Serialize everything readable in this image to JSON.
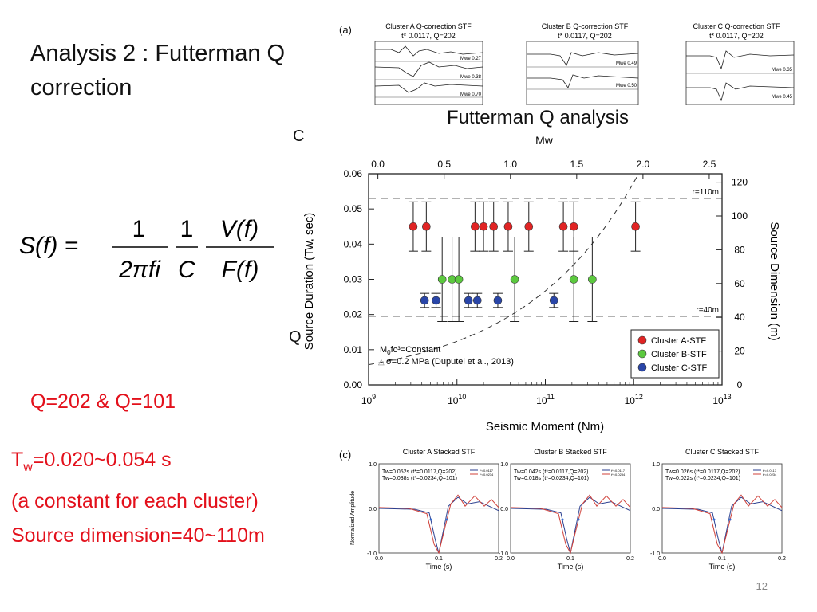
{
  "slide": {
    "title_line1": "Analysis 2 : Futterman Q",
    "title_line2": "correction",
    "formula": {
      "lhs": "S(f) =",
      "frac1_num": "1",
      "frac1_den": "2πfi",
      "frac2_num": "1",
      "frac2_den": "C",
      "frac3_num": "V(f)",
      "frac3_den": "F(f)"
    },
    "q_values": "Q=202 & Q=101",
    "tw_prefix": "T",
    "tw_sub": "w",
    "tw_value": "=0.020~0.054 s",
    "tw_note": "(a constant for each cluster)",
    "source_dimension": "Source dimension=40~110m",
    "page_number": "12",
    "stray_char_1": "C",
    "stray_char_2": "Q"
  },
  "figure_a": {
    "label": "(a)",
    "panels": [
      {
        "title1": "Cluster A Q-correction STF",
        "title2": "t* 0.0117, Q=202",
        "mwe": [
          "Mwe 0.27",
          "Mwe 0.38",
          "Mwe 0.70"
        ]
      },
      {
        "title1": "Cluster B Q-correction STF",
        "title2": "t* 0.0117, Q=202",
        "mwe": [
          "Mwe 0.49",
          "Mwe 0.50"
        ]
      },
      {
        "title1": "Cluster C Q-correction STF",
        "title2": "t* 0.0117, Q=202",
        "mwe": [
          "Mwe 0.35",
          "Mwe 0.45"
        ]
      }
    ]
  },
  "chart_data": [
    {
      "type": "scatter",
      "title": "Futterman Q analysis",
      "xlabel": "Seismic Moment (Nm)",
      "ylabel": "Source Duration (Tw, sec)",
      "y2label": "Source Dimension (m)",
      "x2label": "Mw",
      "x_scale": "log",
      "xlim": [
        1000000000.0,
        10000000000000.0
      ],
      "ylim": [
        0,
        0.06
      ],
      "y2lim": [
        0,
        125
      ],
      "x_ticks": [
        "10^9",
        "10^10",
        "10^11",
        "10^12",
        "10^13"
      ],
      "x2_ticks": [
        "0.0",
        "0.5",
        "1.0",
        "1.5",
        "2.0",
        "2.5"
      ],
      "y_ticks": [
        "0.00",
        "0.01",
        "0.02",
        "0.03",
        "0.04",
        "0.05",
        "0.06"
      ],
      "y2_ticks": [
        "0",
        "20",
        "40",
        "60",
        "80",
        "100",
        "120"
      ],
      "ref_lines": [
        {
          "label": "r=110m",
          "y": 0.053
        },
        {
          "label": "r=40m",
          "y": 0.0195
        }
      ],
      "annotation1_prefix": "M",
      "annotation1_sub": "0",
      "annotation1_rest": "fc³=Constant",
      "annotation2": "σ=0.2 MPa (Duputel et al., 2013)",
      "legend_position": "bottom-right",
      "series": [
        {
          "name": "Cluster A-STF",
          "color": "#e02424",
          "points": [
            [
              3200000000.0,
              0.045
            ],
            [
              4500000000.0,
              0.045
            ],
            [
              16000000000.0,
              0.045
            ],
            [
              20000000000.0,
              0.045
            ],
            [
              26000000000.0,
              0.045
            ],
            [
              38000000000.0,
              0.045
            ],
            [
              65000000000.0,
              0.045
            ],
            [
              160000000000.0,
              0.045
            ],
            [
              210000000000.0,
              0.045
            ],
            [
              1050000000000.0,
              0.045
            ]
          ],
          "err": [
            0.007,
            0.007,
            0.007,
            0.007,
            0.007,
            0.007,
            0.007,
            0.007,
            0.007,
            0.007
          ]
        },
        {
          "name": "Cluster B-STF",
          "color": "#5cc93f",
          "points": [
            [
              6800000000.0,
              0.03
            ],
            [
              8800000000.0,
              0.03
            ],
            [
              10500000000.0,
              0.03
            ],
            [
              45000000000.0,
              0.03
            ],
            [
              210000000000.0,
              0.03
            ],
            [
              340000000000.0,
              0.03
            ]
          ],
          "err": [
            0.012,
            0.012,
            0.012,
            0.012,
            0.012,
            0.012
          ]
        },
        {
          "name": "Cluster C-STF",
          "color": "#2a46a8",
          "points": [
            [
              4300000000.0,
              0.024
            ],
            [
              5800000000.0,
              0.024
            ],
            [
              13500000000.0,
              0.024
            ],
            [
              17000000000.0,
              0.024
            ],
            [
              29000000000.0,
              0.024
            ],
            [
              125000000000.0,
              0.024
            ]
          ],
          "err": [
            0.002,
            0.002,
            0.002,
            0.002,
            0.002,
            0.002
          ]
        }
      ]
    },
    {
      "type": "line",
      "panel_label": "(c)",
      "ylabel": "Normalized Amplitude",
      "panels": [
        {
          "title": "Cluster A Stacked STF",
          "line1": "Tw=0.052s (t*=0.0117,Q=202)",
          "line2": "Tw=0.038s (t*=0.0234,Q=101)"
        },
        {
          "title": "Cluster B Stacked STF",
          "line1": "Tw=0.042s (t*=0.0117,Q=202)",
          "line2": "Tw=0.018s (t*=0.0234,Q=101)"
        },
        {
          "title": "Cluster C Stacked STF",
          "line1": "Tw=0.026s (t*=0.0117,Q=202)",
          "line2": "Tw=0.022s (t*=0.0234,Q=101)"
        }
      ],
      "xlabel": "Time (s)",
      "x_ticks": [
        "0.0",
        "0.1",
        "0.2"
      ],
      "y_ticks": [
        "1.0",
        "0.0",
        "-1.0"
      ],
      "legend_entries": [
        "t*=0.0117",
        "t*=0.0234"
      ],
      "series_colors": [
        "#2b3f8f",
        "#d0413a"
      ]
    }
  ]
}
